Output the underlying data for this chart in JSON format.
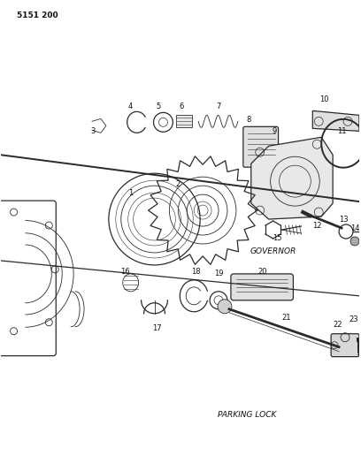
{
  "background_color": "#ffffff",
  "page_number": "5151 200",
  "governor_label": "GOVERNOR",
  "parking_lock_label": "PARKING LOCK",
  "fig_width": 4.08,
  "fig_height": 5.33,
  "dpi": 100
}
